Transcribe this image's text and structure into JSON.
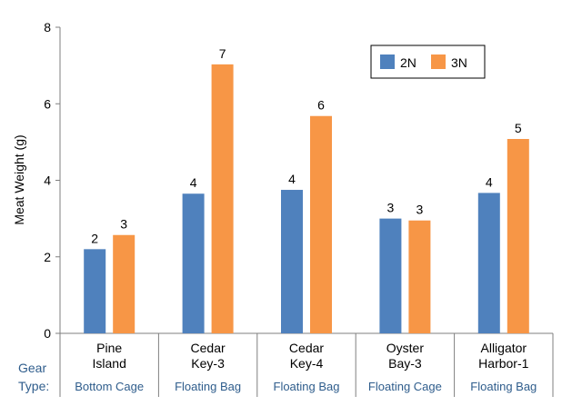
{
  "chart_data": {
    "type": "bar",
    "ylabel": "Meat Weight (g)",
    "ylim": [
      0,
      8
    ],
    "yticks": [
      0,
      2,
      4,
      6,
      8
    ],
    "categories": [
      [
        "Pine",
        "Island"
      ],
      [
        "Cedar",
        "Key-3"
      ],
      [
        "Cedar",
        "Key-4"
      ],
      [
        "Oyster",
        "Bay-3"
      ],
      [
        "Alligator",
        "Harbor-1"
      ]
    ],
    "gear_header": [
      "Gear",
      "Type:"
    ],
    "gear_types": [
      "Bottom Cage",
      "Floating Bag",
      "Floating Bag",
      "Floating Cage",
      "Floating Bag"
    ],
    "series": [
      {
        "name": "2N",
        "color": "#4f81bd",
        "values": [
          2.2,
          3.65,
          3.75,
          3.0,
          3.67
        ],
        "labels": [
          "2",
          "4",
          "4",
          "3",
          "4"
        ]
      },
      {
        "name": "3N",
        "color": "#f79646",
        "values": [
          2.57,
          7.03,
          5.68,
          2.95,
          5.08
        ],
        "labels": [
          "3",
          "7",
          "6",
          "3",
          "5"
        ]
      }
    ],
    "legend_position": "top-right",
    "grid": false
  }
}
